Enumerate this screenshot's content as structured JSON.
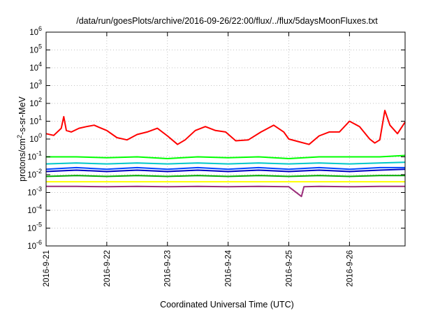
{
  "chart_data": {
    "type": "line",
    "title": "/data/run/goesPlots/archive/2016-09-26/22:00/flux/../flux/5daysMoonFluxes.txt",
    "xlabel": "Coordinated Universal Time (UTC)",
    "ylabel": {
      "pre": "protons/cm",
      "sup": "2",
      "post": "-s-sr-MeV"
    },
    "x_range": [
      "2016-09-21T00:00",
      "2016-09-26T22:00"
    ],
    "x_ticks": [
      "2016-9-21",
      "2016-9-22",
      "2016-9-23",
      "2016-9-24",
      "2016-9-25",
      "2016-9-26"
    ],
    "y_scale": "log",
    "ylim": [
      1e-06,
      1000000.0
    ],
    "y_ticks": [
      {
        "base": "10",
        "exp": "-6"
      },
      {
        "base": "10",
        "exp": "-5"
      },
      {
        "base": "10",
        "exp": "-4"
      },
      {
        "base": "10",
        "exp": "-3"
      },
      {
        "base": "10",
        "exp": "-2"
      },
      {
        "base": "10",
        "exp": "-1"
      },
      {
        "base": "10",
        "exp": "0"
      },
      {
        "base": "10",
        "exp": "1"
      },
      {
        "base": "10",
        "exp": "2"
      },
      {
        "base": "10",
        "exp": "3"
      },
      {
        "base": "10",
        "exp": "4"
      },
      {
        "base": "10",
        "exp": "5"
      },
      {
        "base": "10",
        "exp": "6"
      }
    ],
    "grid": true,
    "legend": "none",
    "series": [
      {
        "color": "#ff0000",
        "x": [
          "2016-09-21T00:00",
          "2016-09-21T03:00",
          "2016-09-21T06:00",
          "2016-09-21T07:00",
          "2016-09-21T08:00",
          "2016-09-21T10:00",
          "2016-09-21T13:00",
          "2016-09-21T16:00",
          "2016-09-21T19:00",
          "2016-09-21T21:00",
          "2016-09-22T00:00",
          "2016-09-22T04:00",
          "2016-09-22T08:00",
          "2016-09-22T12:00",
          "2016-09-22T16:00",
          "2016-09-22T20:00",
          "2016-09-23T00:00",
          "2016-09-23T04:00",
          "2016-09-23T07:00",
          "2016-09-23T11:00",
          "2016-09-23T15:00",
          "2016-09-23T19:00",
          "2016-09-23T23:00",
          "2016-09-24T03:00",
          "2016-09-24T08:00",
          "2016-09-24T13:00",
          "2016-09-24T18:00",
          "2016-09-24T22:00",
          "2016-09-25T00:00",
          "2016-09-25T04:00",
          "2016-09-25T08:00",
          "2016-09-25T12:00",
          "2016-09-25T16:00",
          "2016-09-25T20:00",
          "2016-09-26T00:00",
          "2016-09-26T04:00",
          "2016-09-26T08:00",
          "2016-09-26T10:00",
          "2016-09-26T12:00",
          "2016-09-26T14:00",
          "2016-09-26T16:00",
          "2016-09-26T19:00",
          "2016-09-26T22:00"
        ],
        "y": [
          2.0,
          1.6,
          4.0,
          18,
          3.0,
          2.5,
          4.0,
          5.0,
          6.0,
          4.5,
          3.0,
          1.2,
          0.9,
          1.8,
          2.5,
          4.0,
          1.5,
          0.5,
          0.9,
          3.0,
          5.0,
          3.0,
          2.5,
          0.8,
          0.9,
          2.5,
          6.0,
          2.5,
          1.0,
          0.7,
          0.5,
          1.5,
          2.5,
          2.5,
          10,
          5.0,
          1.0,
          0.6,
          0.9,
          40,
          6.0,
          2.0,
          9.0
        ]
      },
      {
        "color": "#00ff00",
        "x": [
          "2016-09-21T00:00",
          "2016-09-21T12:00",
          "2016-09-22T00:00",
          "2016-09-22T12:00",
          "2016-09-23T00:00",
          "2016-09-23T12:00",
          "2016-09-24T00:00",
          "2016-09-24T12:00",
          "2016-09-25T00:00",
          "2016-09-25T12:00",
          "2016-09-26T00:00",
          "2016-09-26T12:00",
          "2016-09-26T22:00"
        ],
        "y": [
          0.1,
          0.1,
          0.09,
          0.1,
          0.08,
          0.1,
          0.09,
          0.1,
          0.08,
          0.1,
          0.1,
          0.1,
          0.12
        ]
      },
      {
        "color": "#00c8c8",
        "x": [
          "2016-09-21T00:00",
          "2016-09-21T12:00",
          "2016-09-22T00:00",
          "2016-09-22T12:00",
          "2016-09-23T00:00",
          "2016-09-23T12:00",
          "2016-09-24T00:00",
          "2016-09-24T12:00",
          "2016-09-25T00:00",
          "2016-09-25T12:00",
          "2016-09-26T00:00",
          "2016-09-26T12:00",
          "2016-09-26T22:00"
        ],
        "y": [
          0.04,
          0.045,
          0.04,
          0.045,
          0.04,
          0.045,
          0.04,
          0.045,
          0.04,
          0.045,
          0.04,
          0.045,
          0.05
        ]
      },
      {
        "color": "#0044ff",
        "x": [
          "2016-09-21T00:00",
          "2016-09-21T12:00",
          "2016-09-22T00:00",
          "2016-09-22T12:00",
          "2016-09-23T00:00",
          "2016-09-23T12:00",
          "2016-09-24T00:00",
          "2016-09-24T12:00",
          "2016-09-25T00:00",
          "2016-09-25T12:00",
          "2016-09-26T00:00",
          "2016-09-26T12:00",
          "2016-09-26T22:00"
        ],
        "y": [
          0.02,
          0.025,
          0.02,
          0.025,
          0.02,
          0.025,
          0.02,
          0.025,
          0.02,
          0.025,
          0.02,
          0.025,
          0.025
        ]
      },
      {
        "color": "#0000c0",
        "x": [
          "2016-09-21T00:00",
          "2016-09-21T12:00",
          "2016-09-22T00:00",
          "2016-09-22T12:00",
          "2016-09-23T00:00",
          "2016-09-23T12:00",
          "2016-09-24T00:00",
          "2016-09-24T12:00",
          "2016-09-25T00:00",
          "2016-09-25T12:00",
          "2016-09-26T00:00",
          "2016-09-26T12:00",
          "2016-09-26T22:00"
        ],
        "y": [
          0.015,
          0.018,
          0.015,
          0.018,
          0.015,
          0.018,
          0.015,
          0.018,
          0.015,
          0.018,
          0.015,
          0.018,
          0.02
        ]
      },
      {
        "color": "#00aa00",
        "x": [
          "2016-09-21T00:00",
          "2016-09-21T12:00",
          "2016-09-22T00:00",
          "2016-09-22T12:00",
          "2016-09-23T00:00",
          "2016-09-23T12:00",
          "2016-09-24T00:00",
          "2016-09-24T12:00",
          "2016-09-25T00:00",
          "2016-09-25T12:00",
          "2016-09-26T00:00",
          "2016-09-26T12:00",
          "2016-09-26T22:00"
        ],
        "y": [
          0.008,
          0.009,
          0.008,
          0.009,
          0.008,
          0.009,
          0.008,
          0.009,
          0.008,
          0.009,
          0.008,
          0.009,
          0.009
        ]
      },
      {
        "color": "#ffff00",
        "x": [
          "2016-09-21T00:00",
          "2016-09-22T00:00",
          "2016-09-23T00:00",
          "2016-09-24T00:00",
          "2016-09-25T00:00",
          "2016-09-26T00:00",
          "2016-09-26T22:00"
        ],
        "y": [
          0.004,
          0.004,
          0.004,
          0.004,
          0.004,
          0.004,
          0.004
        ]
      },
      {
        "color": "#9b2d7a",
        "x": [
          "2016-09-21T00:00",
          "2016-09-21T12:00",
          "2016-09-22T00:00",
          "2016-09-22T12:00",
          "2016-09-23T00:00",
          "2016-09-23T12:00",
          "2016-09-24T00:00",
          "2016-09-24T12:00",
          "2016-09-25T00:00",
          "2016-09-25T05:00",
          "2016-09-25T06:00",
          "2016-09-25T12:00",
          "2016-09-26T00:00",
          "2016-09-26T12:00",
          "2016-09-26T22:00"
        ],
        "y": [
          0.0022,
          0.0022,
          0.0021,
          0.0022,
          0.0021,
          0.0022,
          0.0021,
          0.0022,
          0.0021,
          0.0006,
          0.0021,
          0.0022,
          0.0021,
          0.0022,
          0.0022
        ]
      }
    ]
  }
}
